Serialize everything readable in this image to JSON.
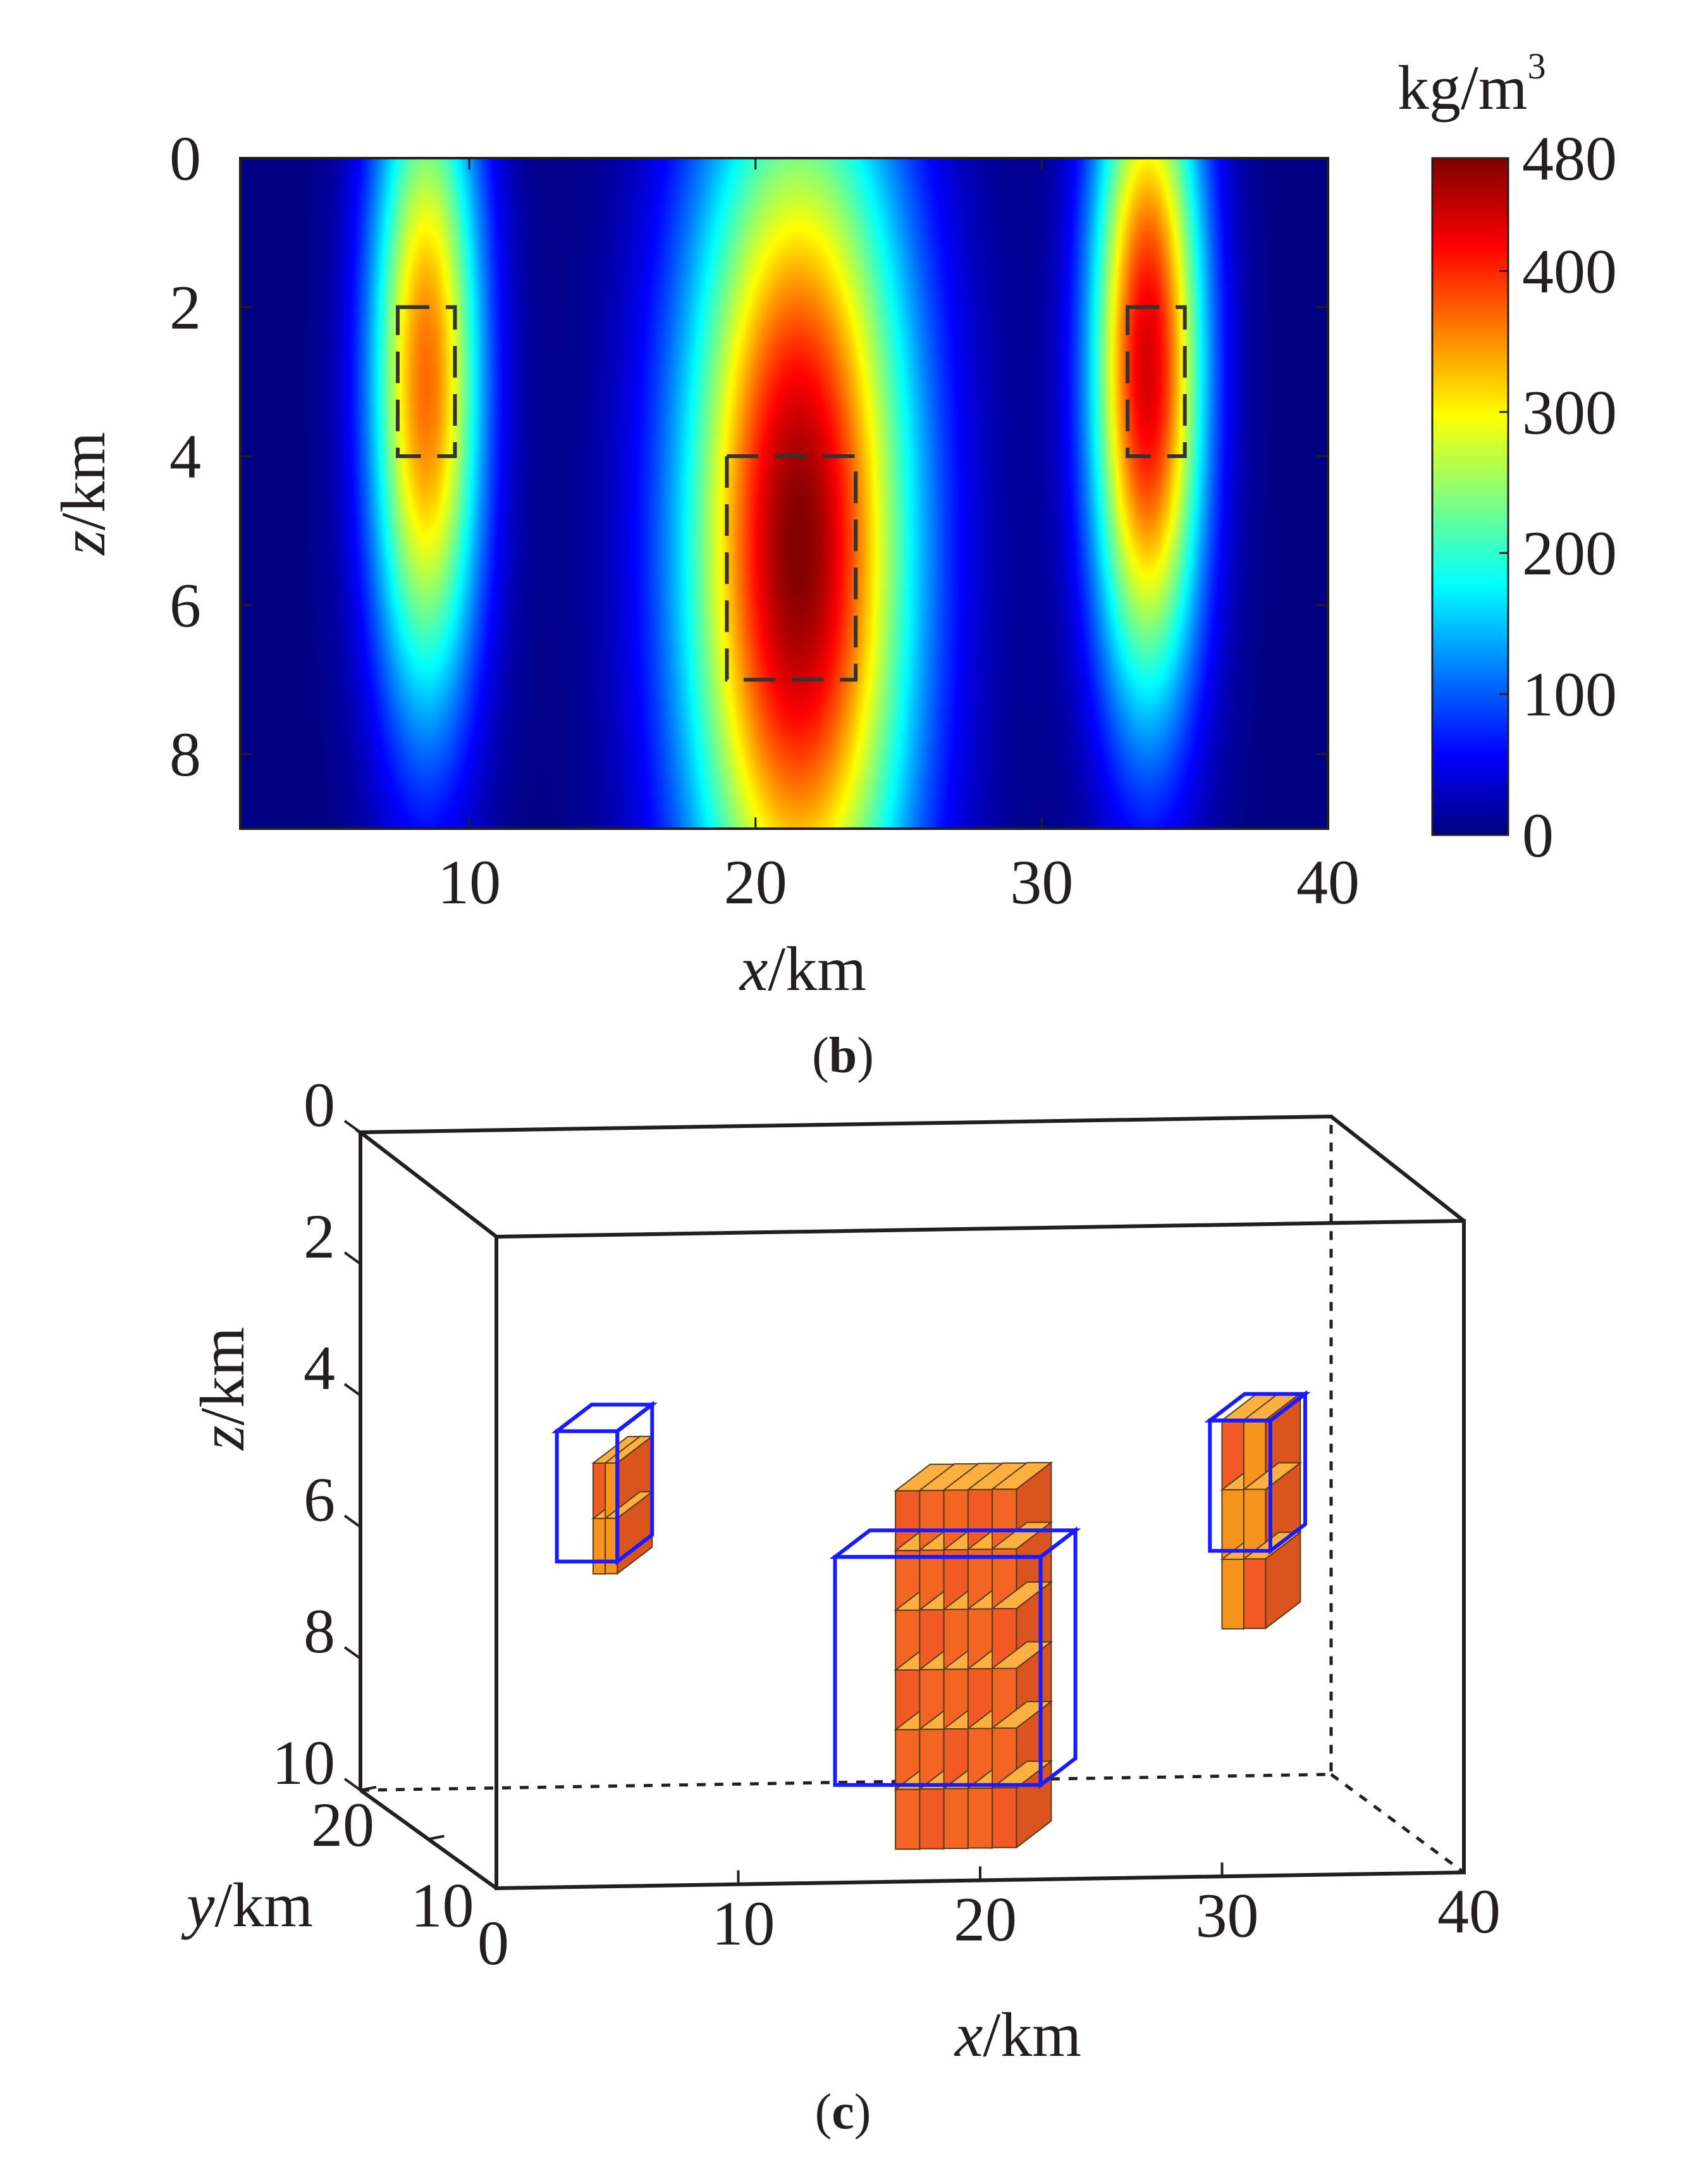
{
  "chart_data": [
    {
      "type": "heatmap",
      "panel": "b",
      "caption_letter": "b",
      "xlabel_var": "x",
      "xlabel_unit": "/km",
      "ylabel_var": "z",
      "ylabel_unit": "/km",
      "xlim": [
        2,
        40
      ],
      "ylim": [
        9,
        0
      ],
      "xticks": [
        10,
        20,
        30,
        40
      ],
      "yticks": [
        0,
        2,
        4,
        6,
        8
      ],
      "colorbar": {
        "label_base": "kg/m",
        "label_exp": "3",
        "range": [
          0,
          480
        ],
        "ticks": [
          0,
          100,
          200,
          300,
          400,
          480
        ]
      },
      "anomalies": [
        {
          "name": "left",
          "x_center": 8.5,
          "z_center": 3.0,
          "sigma_x": 1.4,
          "sigma_z": 3.2,
          "peak": 370
        },
        {
          "name": "center",
          "x_center": 21.5,
          "z_center": 5.2,
          "sigma_x": 2.8,
          "sigma_z": 4.4,
          "peak": 480
        },
        {
          "name": "right",
          "x_center": 33.7,
          "z_center": 2.8,
          "sigma_x": 1.4,
          "sigma_z": 3.2,
          "peak": 440
        }
      ],
      "true_bodies": [
        {
          "name": "left",
          "x": [
            7.5,
            9.5
          ],
          "z": [
            2,
            4
          ]
        },
        {
          "name": "center",
          "x": [
            19,
            23.5
          ],
          "z": [
            4,
            7
          ]
        },
        {
          "name": "right",
          "x": [
            33,
            35
          ],
          "z": [
            2,
            4
          ]
        }
      ]
    },
    {
      "type": "3d_blocks",
      "panel": "c",
      "caption_letter": "c",
      "xlabel_var": "x",
      "xlabel_unit": "/km",
      "ylabel_var": "y",
      "ylabel_unit": "/km",
      "zlabel_var": "z",
      "zlabel_unit": "/km",
      "xlim": [
        0,
        40
      ],
      "ylim": [
        0,
        20
      ],
      "zlim": [
        0,
        10
      ],
      "xticks": [
        0,
        10,
        20,
        30,
        40
      ],
      "yticks": [
        10,
        20
      ],
      "zticks": [
        0,
        2,
        4,
        6,
        8,
        10
      ],
      "true_bodies": [
        {
          "name": "left",
          "x": [
            2.5,
            5
          ],
          "z": [
            3,
            5
          ],
          "outline_color": "#1a1aff"
        },
        {
          "name": "center",
          "x": [
            14,
            22.5
          ],
          "z": [
            5,
            8.5
          ],
          "outline_color": "#1a1aff"
        },
        {
          "name": "right",
          "x": [
            29.5,
            32
          ],
          "z": [
            3,
            5
          ],
          "outline_color": "#1a1aff"
        }
      ],
      "recovered_blocks": [
        {
          "name": "left",
          "x": [
            4,
            5
          ],
          "z": [
            3.5,
            5.2
          ],
          "color": "#f7941d"
        },
        {
          "name": "center",
          "x": [
            16.5,
            21.5
          ],
          "z": [
            4,
            9.5
          ],
          "color": "#f26522"
        },
        {
          "name": "right",
          "x": [
            30,
            31.8
          ],
          "z": [
            3,
            6.2
          ],
          "color": "#f7941d"
        }
      ]
    }
  ],
  "colors": {
    "axis": "#231f20",
    "dash": "#333333",
    "outline_blue": "#1a1aff"
  }
}
